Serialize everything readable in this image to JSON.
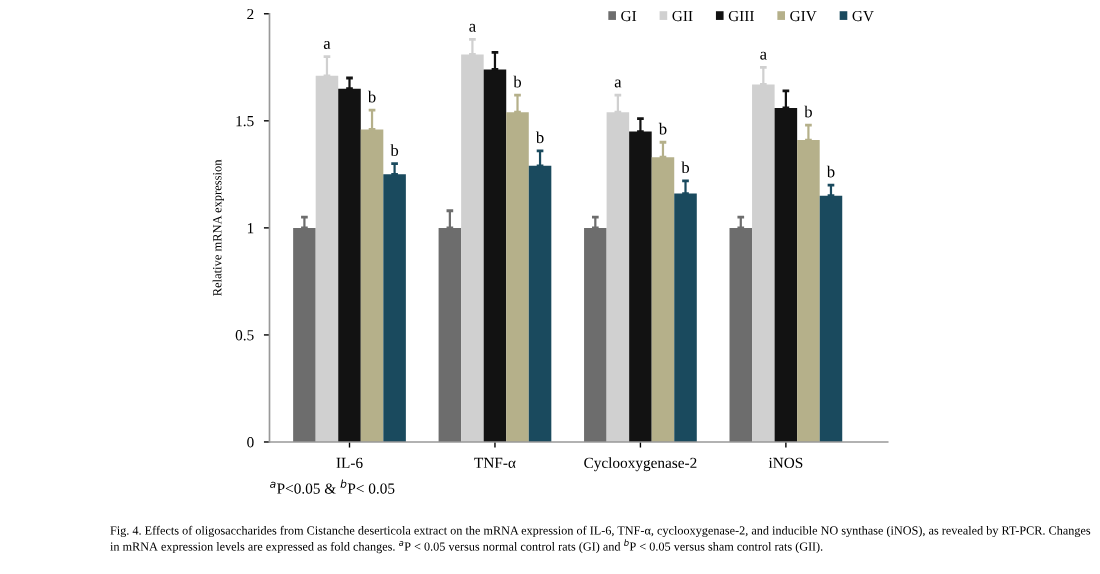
{
  "chart_data": {
    "type": "bar",
    "ylabel": "Relative mRNA expression",
    "categories": [
      "IL-6",
      "TNF-α",
      "Cyclooxygenase-2",
      "iNOS"
    ],
    "series": [
      {
        "name": "GI",
        "color": "#6d6d6d",
        "values": [
          1.0,
          1.0,
          1.0,
          1.0
        ],
        "errors": [
          0.05,
          0.08,
          0.05,
          0.05
        ]
      },
      {
        "name": "GII",
        "color": "#d0d0d0",
        "values": [
          1.71,
          1.81,
          1.54,
          1.67
        ],
        "errors": [
          0.09,
          0.07,
          0.08,
          0.08
        ],
        "value_labels": [
          "a",
          "a",
          "a",
          "a"
        ]
      },
      {
        "name": "GIII",
        "color": "#121212",
        "values": [
          1.65,
          1.74,
          1.45,
          1.56
        ],
        "errors": [
          0.05,
          0.08,
          0.06,
          0.08
        ]
      },
      {
        "name": "GIV",
        "color": "#b5b08a",
        "values": [
          1.46,
          1.54,
          1.33,
          1.41
        ],
        "errors": [
          0.09,
          0.08,
          0.07,
          0.07
        ],
        "value_labels": [
          "b",
          "b",
          "b",
          "b"
        ]
      },
      {
        "name": "GV",
        "color": "#1a4a5e",
        "values": [
          1.25,
          1.29,
          1.16,
          1.15
        ],
        "errors": [
          0.05,
          0.07,
          0.06,
          0.05
        ],
        "value_labels": [
          "b",
          "b",
          "b",
          "b"
        ]
      }
    ],
    "ylim": [
      0,
      2
    ],
    "yticks": [
      0,
      0.5,
      1,
      1.5,
      2
    ],
    "grid": false,
    "legend": "top right",
    "annotations": [
      "$^{a}$P<0.05 & $^{b}$P< 0.05",
      "Fig. 4. Effects of oligosaccharides from Cistanche deserticola extract on the mRNA expression of IL-6, TNF-α, cyclooxygenase-2, and inducible NO synthase (iNOS), as revealed by RT-PCR. Changes in mRNA expression levels are expressed as fold changes. $^{a}$P < 0.05 versus normal control rats (GI) and $^{b}$P < 0.05 versus sham control rats (GII)."
    ]
  }
}
